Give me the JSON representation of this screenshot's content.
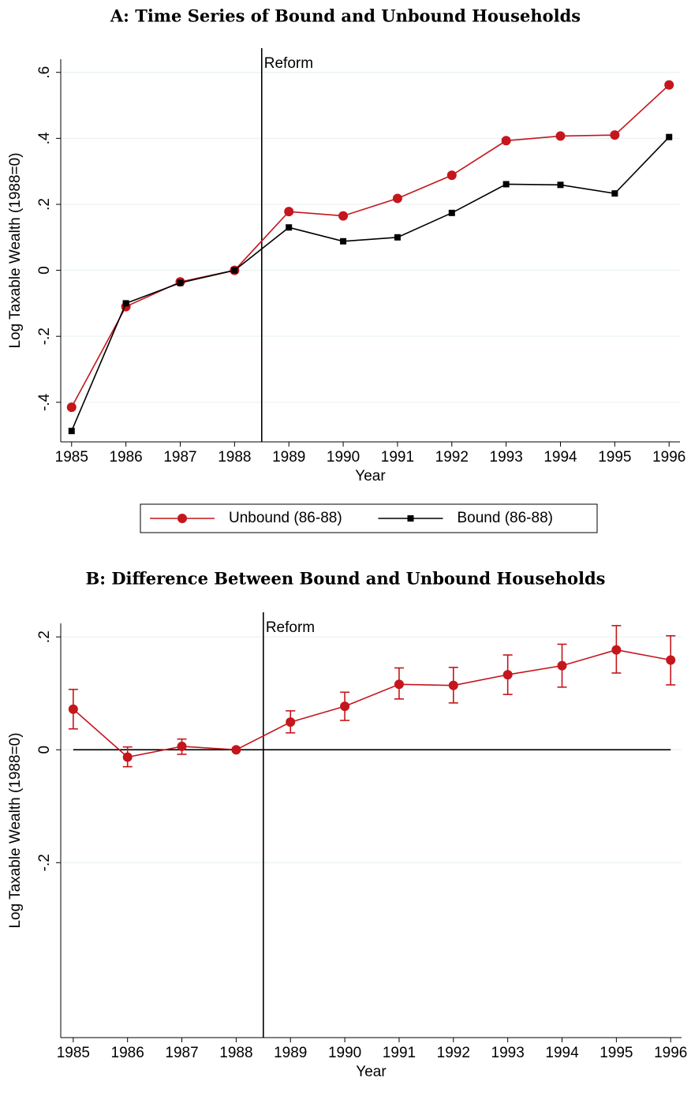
{
  "chart_data": [
    {
      "type": "line",
      "title": "A: Time Series of Bound and Unbound Households",
      "x_label": "Year",
      "y_label": "Log Taxable Wealth (1988=0)",
      "x": [
        1985,
        1986,
        1987,
        1988,
        1989,
        1990,
        1991,
        1992,
        1993,
        1994,
        1995,
        1996
      ],
      "series": [
        {
          "name": "Unbound (86-88)",
          "color": "#c4161c",
          "marker": "circle",
          "values": [
            -0.415,
            -0.11,
            -0.035,
            0,
            0.178,
            0.165,
            0.218,
            0.288,
            0.393,
            0.407,
            0.41,
            0.562
          ]
        },
        {
          "name": "Bound (86-88)",
          "color": "#000000",
          "marker": "square",
          "values": [
            -0.487,
            -0.1,
            -0.038,
            0,
            0.13,
            0.088,
            0.1,
            0.174,
            0.261,
            0.259,
            0.233,
            0.404
          ]
        }
      ],
      "xlim": [
        1984.8,
        1996.2
      ],
      "xticks": [
        1985,
        1986,
        1987,
        1988,
        1989,
        1990,
        1991,
        1992,
        1993,
        1994,
        1995,
        1996
      ],
      "ylim": [
        -0.52,
        0.64
      ],
      "yticks": [
        {
          "value": -0.4,
          "label": "-.4"
        },
        {
          "value": -0.2,
          "label": "-.2"
        },
        0,
        {
          "value": 0.2,
          "label": ".2"
        },
        {
          "value": 0.4,
          "label": ".4"
        },
        {
          "value": 0.6,
          "label": ".6"
        }
      ],
      "grid": true,
      "legend": "bottom",
      "annotations": [
        {
          "x": 1988.5,
          "label": "Reform"
        }
      ]
    },
    {
      "type": "errorbar",
      "title": "B: Difference Between Bound and Unbound Households",
      "x_label": "Year",
      "y_label": "Log Taxable Wealth (1988=0)",
      "x": [
        1985,
        1986,
        1987,
        1988,
        1989,
        1990,
        1991,
        1992,
        1993,
        1994,
        1995,
        1996
      ],
      "series": [
        {
          "color": "#c4161c",
          "marker": "circle",
          "values": [
            0.072,
            -0.013,
            0.006,
            0,
            0.049,
            0.077,
            0.116,
            0.114,
            0.133,
            0.149,
            0.177,
            0.159
          ],
          "lower": [
            0.037,
            -0.03,
            -0.008,
            null,
            0.03,
            0.052,
            0.09,
            0.083,
            0.098,
            0.111,
            0.136,
            0.115
          ],
          "upper": [
            0.107,
            0.005,
            0.019,
            null,
            0.069,
            0.102,
            0.145,
            0.146,
            0.168,
            0.187,
            0.22,
            0.202
          ]
        }
      ],
      "xlim": [
        1984.77,
        1996.2
      ],
      "xticks": [
        1985,
        1986,
        1987,
        1988,
        1989,
        1990,
        1991,
        1992,
        1993,
        1994,
        1995,
        1996
      ],
      "ylim": [
        -0.51,
        0.224
      ],
      "yticks": [
        {
          "value": -0.2,
          "label": "-.2"
        },
        0,
        {
          "value": 0.2,
          "label": ".2"
        }
      ],
      "grid": true,
      "hline": 0,
      "annotations": [
        {
          "x": 1988.5,
          "label": "Reform"
        }
      ]
    }
  ]
}
